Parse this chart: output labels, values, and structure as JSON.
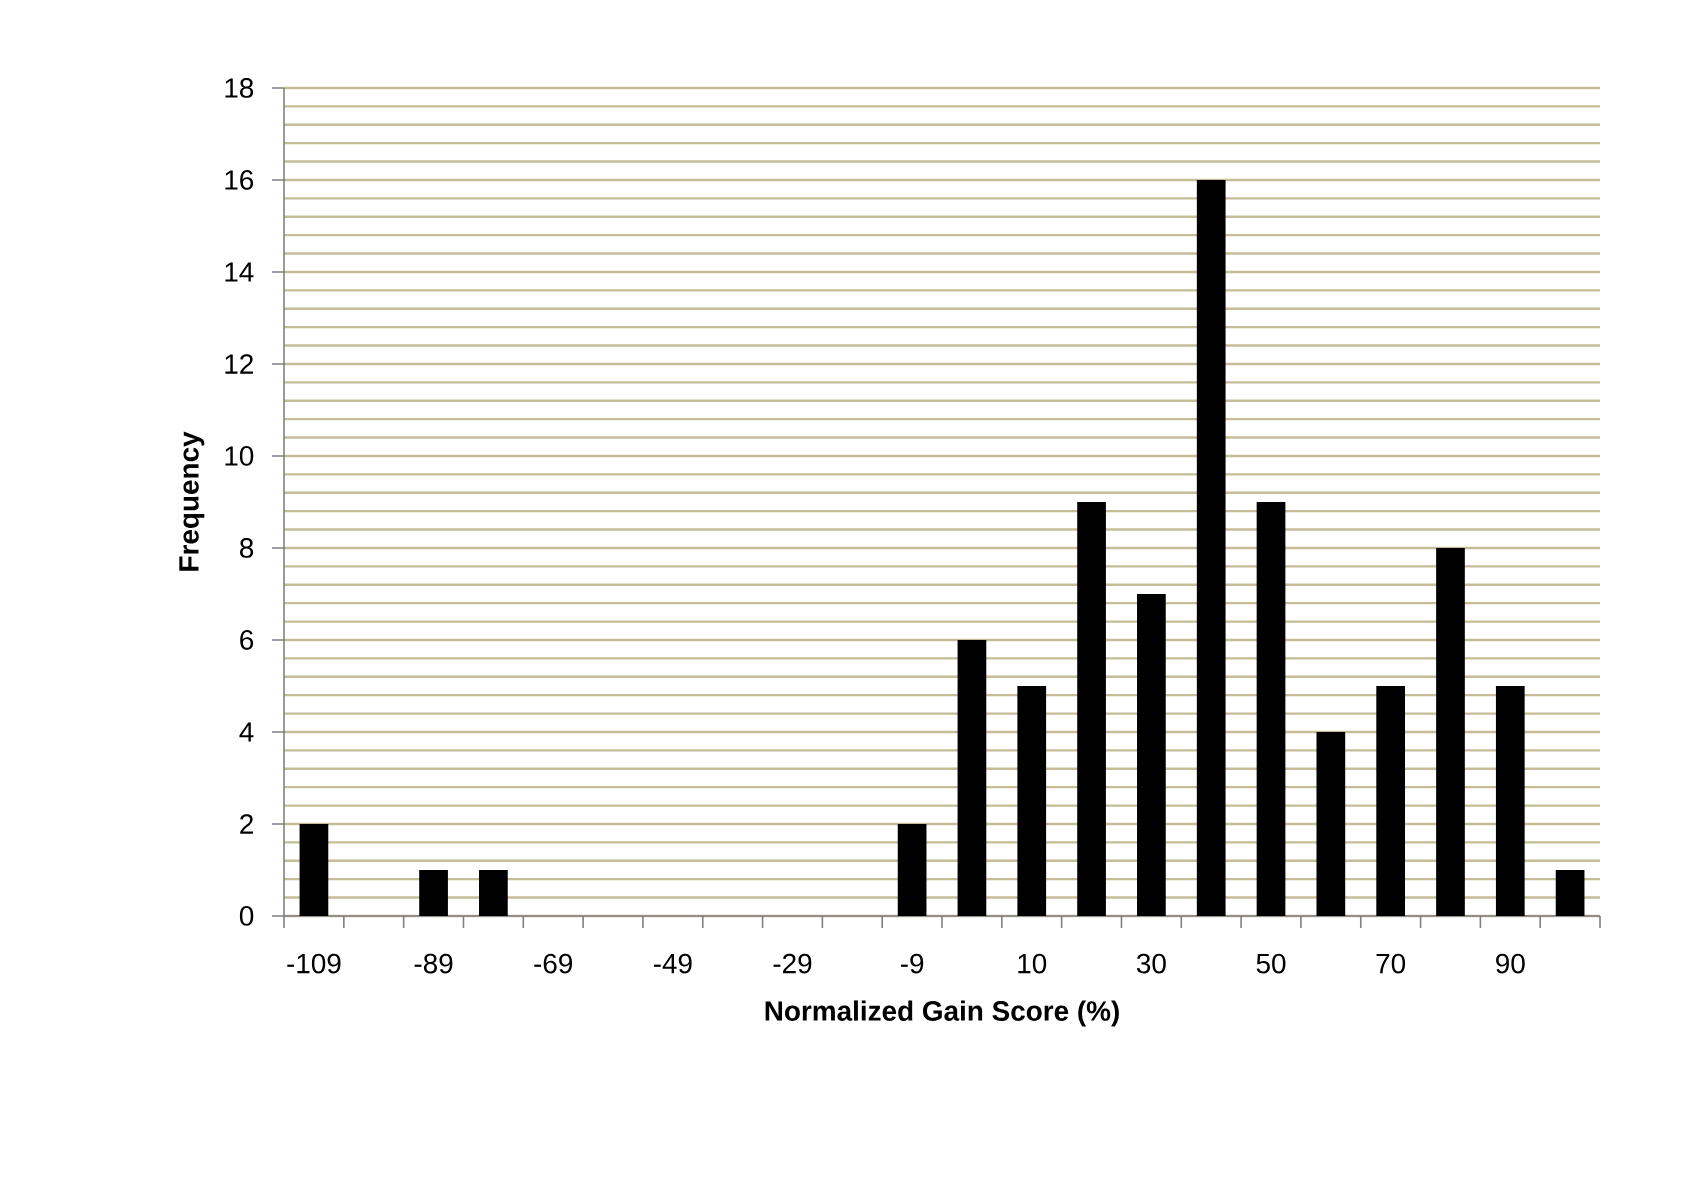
{
  "chart_data": {
    "type": "bar",
    "xlabel": "Normalized Gain Score (%)",
    "ylabel": "Frequency",
    "categories": [
      "-109",
      null,
      "-89",
      null,
      "-69",
      null,
      "-49",
      null,
      "-29",
      null,
      "-9",
      null,
      "10",
      null,
      "30",
      null,
      "50",
      null,
      "70",
      null,
      "90",
      null
    ],
    "values": [
      2,
      0,
      1,
      1,
      0,
      0,
      0,
      0,
      0,
      0,
      2,
      6,
      5,
      9,
      7,
      16,
      9,
      4,
      5,
      8,
      5,
      1
    ],
    "color": "#000000",
    "ylim": [
      0,
      18
    ],
    "yticks": [
      0,
      2,
      4,
      6,
      8,
      10,
      12,
      14,
      16,
      18
    ],
    "grid": "y"
  }
}
